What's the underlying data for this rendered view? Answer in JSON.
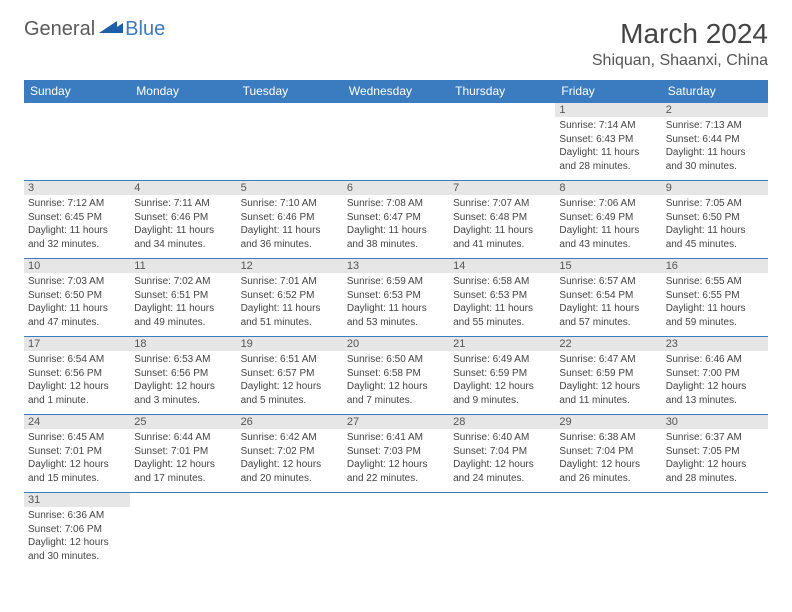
{
  "logo": {
    "part1": "General",
    "part2": "Blue"
  },
  "title": "March 2024",
  "location": "Shiquan, Shaanxi, China",
  "colors": {
    "header_bg": "#3b7bbf",
    "header_text": "#ffffff",
    "daynum_bg": "#e6e6e6",
    "cell_border": "#3b7bbf",
    "body_text": "#444444"
  },
  "weekdays": [
    "Sunday",
    "Monday",
    "Tuesday",
    "Wednesday",
    "Thursday",
    "Friday",
    "Saturday"
  ],
  "weeks": [
    [
      null,
      null,
      null,
      null,
      null,
      {
        "n": "1",
        "sr": "Sunrise: 7:14 AM",
        "ss": "Sunset: 6:43 PM",
        "d1": "Daylight: 11 hours",
        "d2": "and 28 minutes."
      },
      {
        "n": "2",
        "sr": "Sunrise: 7:13 AM",
        "ss": "Sunset: 6:44 PM",
        "d1": "Daylight: 11 hours",
        "d2": "and 30 minutes."
      }
    ],
    [
      {
        "n": "3",
        "sr": "Sunrise: 7:12 AM",
        "ss": "Sunset: 6:45 PM",
        "d1": "Daylight: 11 hours",
        "d2": "and 32 minutes."
      },
      {
        "n": "4",
        "sr": "Sunrise: 7:11 AM",
        "ss": "Sunset: 6:46 PM",
        "d1": "Daylight: 11 hours",
        "d2": "and 34 minutes."
      },
      {
        "n": "5",
        "sr": "Sunrise: 7:10 AM",
        "ss": "Sunset: 6:46 PM",
        "d1": "Daylight: 11 hours",
        "d2": "and 36 minutes."
      },
      {
        "n": "6",
        "sr": "Sunrise: 7:08 AM",
        "ss": "Sunset: 6:47 PM",
        "d1": "Daylight: 11 hours",
        "d2": "and 38 minutes."
      },
      {
        "n": "7",
        "sr": "Sunrise: 7:07 AM",
        "ss": "Sunset: 6:48 PM",
        "d1": "Daylight: 11 hours",
        "d2": "and 41 minutes."
      },
      {
        "n": "8",
        "sr": "Sunrise: 7:06 AM",
        "ss": "Sunset: 6:49 PM",
        "d1": "Daylight: 11 hours",
        "d2": "and 43 minutes."
      },
      {
        "n": "9",
        "sr": "Sunrise: 7:05 AM",
        "ss": "Sunset: 6:50 PM",
        "d1": "Daylight: 11 hours",
        "d2": "and 45 minutes."
      }
    ],
    [
      {
        "n": "10",
        "sr": "Sunrise: 7:03 AM",
        "ss": "Sunset: 6:50 PM",
        "d1": "Daylight: 11 hours",
        "d2": "and 47 minutes."
      },
      {
        "n": "11",
        "sr": "Sunrise: 7:02 AM",
        "ss": "Sunset: 6:51 PM",
        "d1": "Daylight: 11 hours",
        "d2": "and 49 minutes."
      },
      {
        "n": "12",
        "sr": "Sunrise: 7:01 AM",
        "ss": "Sunset: 6:52 PM",
        "d1": "Daylight: 11 hours",
        "d2": "and 51 minutes."
      },
      {
        "n": "13",
        "sr": "Sunrise: 6:59 AM",
        "ss": "Sunset: 6:53 PM",
        "d1": "Daylight: 11 hours",
        "d2": "and 53 minutes."
      },
      {
        "n": "14",
        "sr": "Sunrise: 6:58 AM",
        "ss": "Sunset: 6:53 PM",
        "d1": "Daylight: 11 hours",
        "d2": "and 55 minutes."
      },
      {
        "n": "15",
        "sr": "Sunrise: 6:57 AM",
        "ss": "Sunset: 6:54 PM",
        "d1": "Daylight: 11 hours",
        "d2": "and 57 minutes."
      },
      {
        "n": "16",
        "sr": "Sunrise: 6:55 AM",
        "ss": "Sunset: 6:55 PM",
        "d1": "Daylight: 11 hours",
        "d2": "and 59 minutes."
      }
    ],
    [
      {
        "n": "17",
        "sr": "Sunrise: 6:54 AM",
        "ss": "Sunset: 6:56 PM",
        "d1": "Daylight: 12 hours",
        "d2": "and 1 minute."
      },
      {
        "n": "18",
        "sr": "Sunrise: 6:53 AM",
        "ss": "Sunset: 6:56 PM",
        "d1": "Daylight: 12 hours",
        "d2": "and 3 minutes."
      },
      {
        "n": "19",
        "sr": "Sunrise: 6:51 AM",
        "ss": "Sunset: 6:57 PM",
        "d1": "Daylight: 12 hours",
        "d2": "and 5 minutes."
      },
      {
        "n": "20",
        "sr": "Sunrise: 6:50 AM",
        "ss": "Sunset: 6:58 PM",
        "d1": "Daylight: 12 hours",
        "d2": "and 7 minutes."
      },
      {
        "n": "21",
        "sr": "Sunrise: 6:49 AM",
        "ss": "Sunset: 6:59 PM",
        "d1": "Daylight: 12 hours",
        "d2": "and 9 minutes."
      },
      {
        "n": "22",
        "sr": "Sunrise: 6:47 AM",
        "ss": "Sunset: 6:59 PM",
        "d1": "Daylight: 12 hours",
        "d2": "and 11 minutes."
      },
      {
        "n": "23",
        "sr": "Sunrise: 6:46 AM",
        "ss": "Sunset: 7:00 PM",
        "d1": "Daylight: 12 hours",
        "d2": "and 13 minutes."
      }
    ],
    [
      {
        "n": "24",
        "sr": "Sunrise: 6:45 AM",
        "ss": "Sunset: 7:01 PM",
        "d1": "Daylight: 12 hours",
        "d2": "and 15 minutes."
      },
      {
        "n": "25",
        "sr": "Sunrise: 6:44 AM",
        "ss": "Sunset: 7:01 PM",
        "d1": "Daylight: 12 hours",
        "d2": "and 17 minutes."
      },
      {
        "n": "26",
        "sr": "Sunrise: 6:42 AM",
        "ss": "Sunset: 7:02 PM",
        "d1": "Daylight: 12 hours",
        "d2": "and 20 minutes."
      },
      {
        "n": "27",
        "sr": "Sunrise: 6:41 AM",
        "ss": "Sunset: 7:03 PM",
        "d1": "Daylight: 12 hours",
        "d2": "and 22 minutes."
      },
      {
        "n": "28",
        "sr": "Sunrise: 6:40 AM",
        "ss": "Sunset: 7:04 PM",
        "d1": "Daylight: 12 hours",
        "d2": "and 24 minutes."
      },
      {
        "n": "29",
        "sr": "Sunrise: 6:38 AM",
        "ss": "Sunset: 7:04 PM",
        "d1": "Daylight: 12 hours",
        "d2": "and 26 minutes."
      },
      {
        "n": "30",
        "sr": "Sunrise: 6:37 AM",
        "ss": "Sunset: 7:05 PM",
        "d1": "Daylight: 12 hours",
        "d2": "and 28 minutes."
      }
    ],
    [
      {
        "n": "31",
        "sr": "Sunrise: 6:36 AM",
        "ss": "Sunset: 7:06 PM",
        "d1": "Daylight: 12 hours",
        "d2": "and 30 minutes."
      },
      null,
      null,
      null,
      null,
      null,
      null
    ]
  ]
}
